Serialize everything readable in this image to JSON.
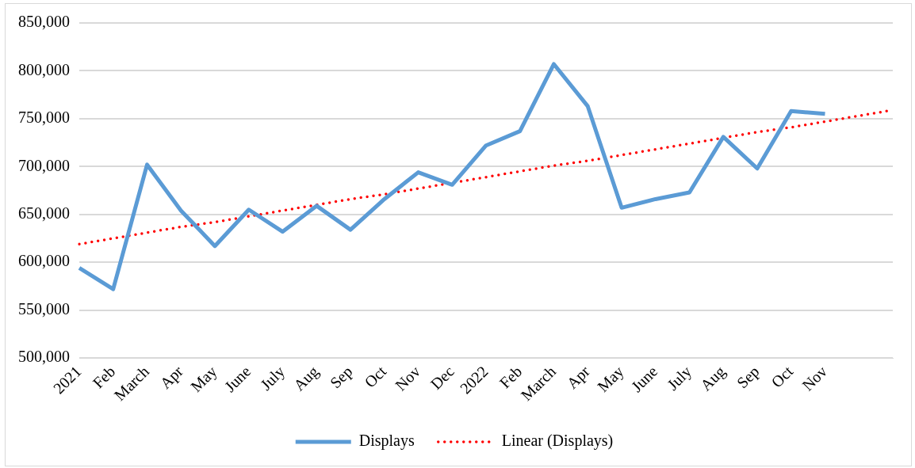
{
  "chart_data": {
    "type": "line",
    "categories": [
      "2021",
      "Feb",
      "March",
      "Apr",
      "May",
      "June",
      "July",
      "Aug",
      "Sep",
      "Oct",
      "Nov",
      "Dec",
      "2022",
      "Feb",
      "March",
      "Apr",
      "May",
      "June",
      "July",
      "Aug",
      "Sep",
      "Oct",
      "Nov",
      null,
      null
    ],
    "series": [
      {
        "name": "Displays",
        "color": "#5b9bd5",
        "line_style": "solid",
        "values": [
          594000,
          572000,
          702000,
          654000,
          617000,
          655000,
          632000,
          659000,
          634000,
          666000,
          694000,
          681000,
          722000,
          737000,
          807000,
          763000,
          657000,
          666000,
          673000,
          731000,
          698000,
          758000,
          755000,
          null,
          null
        ]
      },
      {
        "name": "Linear (Displays)",
        "type": "line",
        "color": "#ff0000",
        "line_style": "dotted",
        "values": [
          619000,
          625000,
          631000,
          637000,
          642000,
          648000,
          654000,
          660000,
          666000,
          671000,
          677000,
          683000,
          689000,
          695000,
          701000,
          706000,
          712000,
          718000,
          724000,
          730000,
          736000,
          741000,
          747000,
          753000,
          759000
        ]
      }
    ],
    "ylim": [
      500000,
      850000
    ],
    "yticks": [
      {
        "value": 500000,
        "label": "500,000"
      },
      {
        "value": 550000,
        "label": "550,000"
      },
      {
        "value": 600000,
        "label": "600,000"
      },
      {
        "value": 650000,
        "label": "650,000"
      },
      {
        "value": 700000,
        "label": "700,000"
      },
      {
        "value": 750000,
        "label": "750,000"
      },
      {
        "value": 800000,
        "label": "800,000"
      },
      {
        "value": 850000,
        "label": "850,000"
      }
    ],
    "grid": "y",
    "legend": "bottom",
    "marker": "none"
  }
}
